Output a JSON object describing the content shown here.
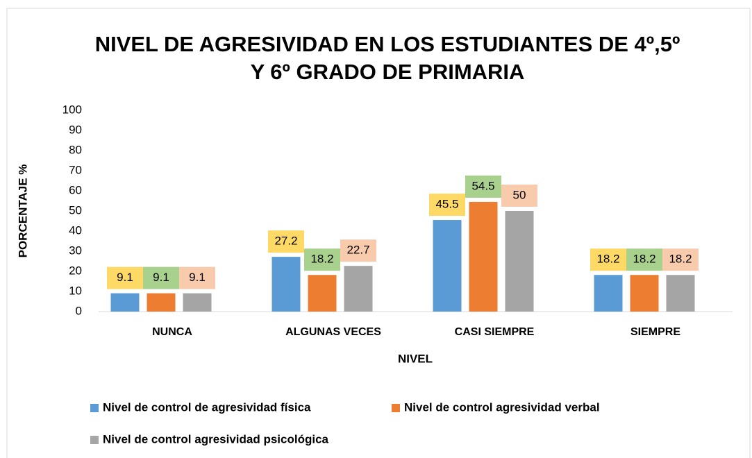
{
  "chart_data": {
    "type": "bar",
    "title": [
      "NIVEL DE AGRESIVIDAD EN LOS ESTUDIANTES DE 4º,5º",
      "Y 6º GRADO DE PRIMARIA"
    ],
    "y_label": "PORCENTAJE %",
    "x_label": "NIVEL",
    "categories": [
      "NUNCA",
      "ALGUNAS VECES",
      "CASI SIEMPRE",
      "SIEMPRE"
    ],
    "series": [
      {
        "name": "Nivel de control de agresividad física",
        "color": "#5b9bd5",
        "label_color": "#ffd966",
        "values": [
          9.1,
          27.2,
          45.5,
          18.2
        ]
      },
      {
        "name": "Nivel de control agresividad verbal",
        "color": "#ed7d31",
        "label_color": "#a9d18e",
        "values": [
          9.1,
          18.2,
          54.5,
          18.2
        ]
      },
      {
        "name": "Nivel de control agresividad psicológica",
        "color": "#a5a5a5",
        "label_color": "#f8cbad",
        "values": [
          9.1,
          22.7,
          50,
          18.2
        ]
      }
    ],
    "ylim": [
      0,
      100
    ],
    "yticks": [
      0,
      10,
      20,
      30,
      40,
      50,
      60,
      70,
      80,
      90,
      100
    ],
    "grid": false,
    "legend": "bottom"
  }
}
